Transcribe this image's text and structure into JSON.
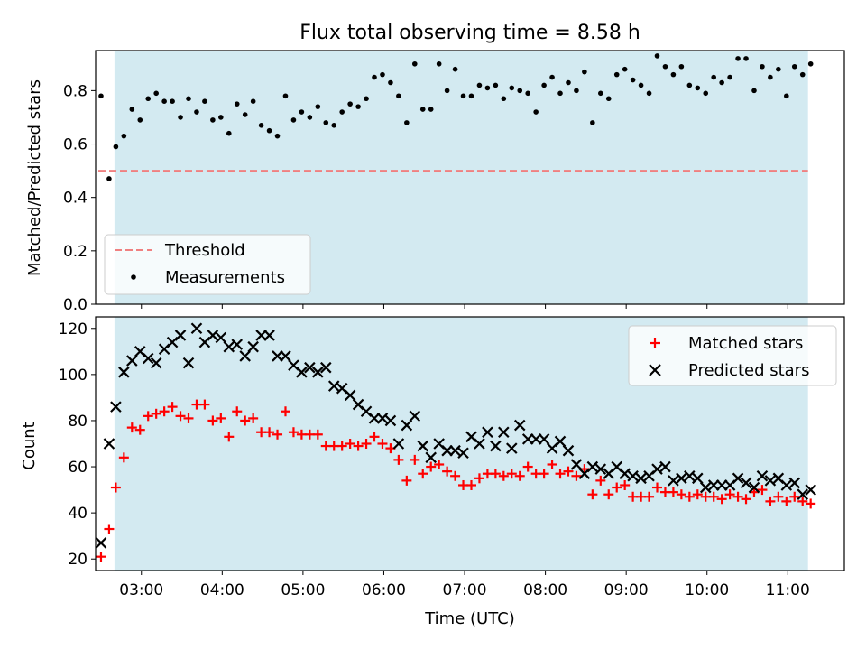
{
  "figure": {
    "title": "Flux total observing time = 8.58 h",
    "xlabel": "Time (UTC)",
    "shade_color": "#d3eaf1"
  },
  "chart_data": [
    {
      "type": "scatter",
      "panel": "top",
      "ylabel": "Matched/Predicted stars",
      "xlim": [
        "02:26",
        "11:42"
      ],
      "ylim": [
        0,
        0.95
      ],
      "yticks": [
        0.0,
        0.2,
        0.4,
        0.6,
        0.8
      ],
      "shaded_span": [
        "02:40",
        "11:15"
      ],
      "threshold": {
        "name": "Threshold",
        "value": 0.5,
        "x_range": [
          "02:28",
          "11:15"
        ],
        "color": "#f08080",
        "style": "dashed"
      },
      "legend_placement": "lower left",
      "series": [
        {
          "name": "Measurements",
          "color": "#000000",
          "marker": "dot",
          "x": [
            "02:30",
            "02:36",
            "02:41",
            "02:47",
            "02:53",
            "02:59",
            "03:05",
            "03:11",
            "03:17",
            "03:23",
            "03:29",
            "03:35",
            "03:41",
            "03:47",
            "03:53",
            "03:59",
            "04:05",
            "04:11",
            "04:17",
            "04:23",
            "04:29",
            "04:35",
            "04:41",
            "04:47",
            "04:53",
            "04:59",
            "05:05",
            "05:11",
            "05:17",
            "05:23",
            "05:29",
            "05:35",
            "05:41",
            "05:47",
            "05:53",
            "05:59",
            "06:05",
            "06:11",
            "06:17",
            "06:23",
            "06:29",
            "06:35",
            "06:41",
            "06:47",
            "06:53",
            "06:59",
            "07:05",
            "07:11",
            "07:17",
            "07:23",
            "07:29",
            "07:35",
            "07:41",
            "07:47",
            "07:53",
            "07:59",
            "08:05",
            "08:11",
            "08:17",
            "08:23",
            "08:29",
            "08:35",
            "08:41",
            "08:47",
            "08:53",
            "08:59",
            "09:05",
            "09:11",
            "09:17",
            "09:23",
            "09:29",
            "09:35",
            "09:41",
            "09:47",
            "09:53",
            "09:59",
            "10:05",
            "10:11",
            "10:17",
            "10:23",
            "10:29",
            "10:35",
            "10:41",
            "10:47",
            "10:53",
            "10:59",
            "11:05",
            "11:11",
            "11:17"
          ],
          "y": [
            0.78,
            0.47,
            0.59,
            0.63,
            0.73,
            0.69,
            0.77,
            0.79,
            0.76,
            0.76,
            0.7,
            0.77,
            0.72,
            0.76,
            0.69,
            0.7,
            0.64,
            0.75,
            0.71,
            0.76,
            0.67,
            0.65,
            0.63,
            0.78,
            0.69,
            0.72,
            0.7,
            0.74,
            0.68,
            0.67,
            0.72,
            0.75,
            0.74,
            0.77,
            0.85,
            0.86,
            0.83,
            0.78,
            0.68,
            0.9,
            0.73,
            0.73,
            0.9,
            0.8,
            0.88,
            0.78,
            0.78,
            0.82,
            0.81,
            0.82,
            0.77,
            0.81,
            0.8,
            0.79,
            0.72,
            0.82,
            0.85,
            0.79,
            0.83,
            0.8,
            0.87,
            0.68,
            0.79,
            0.77,
            0.86,
            0.88,
            0.84,
            0.82,
            0.79,
            0.93,
            0.89,
            0.86,
            0.89,
            0.82,
            0.81,
            0.79,
            0.85,
            0.83,
            0.85,
            0.92,
            0.92,
            0.8,
            0.89,
            0.85,
            0.88,
            0.78,
            0.89,
            0.86,
            0.9
          ]
        }
      ]
    },
    {
      "type": "scatter",
      "panel": "bottom",
      "ylabel": "Count",
      "xlim": [
        "02:26",
        "11:42"
      ],
      "ylim": [
        15,
        125
      ],
      "yticks": [
        20,
        40,
        60,
        80,
        100,
        120
      ],
      "xticks": [
        "03:00",
        "04:00",
        "05:00",
        "06:00",
        "07:00",
        "08:00",
        "09:00",
        "10:00",
        "11:00"
      ],
      "shaded_span": [
        "02:40",
        "11:15"
      ],
      "legend_placement": "upper right",
      "series": [
        {
          "name": "Matched stars",
          "color": "#ff0000",
          "marker": "plus",
          "x": [
            "02:30",
            "02:36",
            "02:41",
            "02:47",
            "02:53",
            "02:59",
            "03:05",
            "03:11",
            "03:17",
            "03:23",
            "03:29",
            "03:35",
            "03:41",
            "03:47",
            "03:53",
            "03:59",
            "04:05",
            "04:11",
            "04:17",
            "04:23",
            "04:29",
            "04:35",
            "04:41",
            "04:47",
            "04:53",
            "04:59",
            "05:05",
            "05:11",
            "05:17",
            "05:23",
            "05:29",
            "05:35",
            "05:41",
            "05:47",
            "05:53",
            "05:59",
            "06:05",
            "06:11",
            "06:17",
            "06:23",
            "06:29",
            "06:35",
            "06:41",
            "06:47",
            "06:53",
            "06:59",
            "07:05",
            "07:11",
            "07:17",
            "07:23",
            "07:29",
            "07:35",
            "07:41",
            "07:47",
            "07:53",
            "07:59",
            "08:05",
            "08:11",
            "08:17",
            "08:23",
            "08:29",
            "08:35",
            "08:41",
            "08:47",
            "08:53",
            "08:59",
            "09:05",
            "09:11",
            "09:17",
            "09:23",
            "09:29",
            "09:35",
            "09:41",
            "09:47",
            "09:53",
            "09:59",
            "10:05",
            "10:11",
            "10:17",
            "10:23",
            "10:29",
            "10:35",
            "10:41",
            "10:47",
            "10:53",
            "10:59",
            "11:05",
            "11:11",
            "11:17"
          ],
          "y": [
            21,
            33,
            51,
            64,
            77,
            76,
            82,
            83,
            84,
            86,
            82,
            81,
            87,
            87,
            80,
            81,
            73,
            84,
            80,
            81,
            75,
            75,
            74,
            84,
            75,
            74,
            74,
            74,
            69,
            69,
            69,
            70,
            69,
            70,
            73,
            70,
            68,
            63,
            54,
            63,
            57,
            60,
            61,
            58,
            56,
            52,
            52,
            55,
            57,
            57,
            56,
            57,
            56,
            60,
            57,
            57,
            61,
            57,
            58,
            56,
            59,
            48,
            54,
            48,
            51,
            52,
            47,
            47,
            47,
            51,
            49,
            49,
            48,
            47,
            48,
            47,
            47,
            46,
            48,
            47,
            46,
            49,
            50,
            45,
            47,
            45,
            47,
            45,
            44
          ]
        },
        {
          "name": "Predicted stars",
          "color": "#000000",
          "marker": "x",
          "x": [
            "02:30",
            "02:36",
            "02:41",
            "02:47",
            "02:53",
            "02:59",
            "03:05",
            "03:11",
            "03:17",
            "03:23",
            "03:29",
            "03:35",
            "03:41",
            "03:47",
            "03:53",
            "03:59",
            "04:05",
            "04:11",
            "04:17",
            "04:23",
            "04:29",
            "04:35",
            "04:41",
            "04:47",
            "04:53",
            "04:59",
            "05:05",
            "05:11",
            "05:17",
            "05:23",
            "05:29",
            "05:35",
            "05:41",
            "05:47",
            "05:53",
            "05:59",
            "06:05",
            "06:11",
            "06:17",
            "06:23",
            "06:29",
            "06:35",
            "06:41",
            "06:47",
            "06:53",
            "06:59",
            "07:05",
            "07:11",
            "07:17",
            "07:23",
            "07:29",
            "07:35",
            "07:41",
            "07:47",
            "07:53",
            "07:59",
            "08:05",
            "08:11",
            "08:17",
            "08:23",
            "08:29",
            "08:35",
            "08:41",
            "08:47",
            "08:53",
            "08:59",
            "09:05",
            "09:11",
            "09:17",
            "09:23",
            "09:29",
            "09:35",
            "09:41",
            "09:47",
            "09:53",
            "09:59",
            "10:05",
            "10:11",
            "10:17",
            "10:23",
            "10:29",
            "10:35",
            "10:41",
            "10:47",
            "10:53",
            "10:59",
            "11:05",
            "11:11",
            "11:17"
          ],
          "y": [
            27,
            70,
            86,
            101,
            106,
            110,
            107,
            105,
            111,
            114,
            117,
            105,
            120,
            114,
            117,
            116,
            112,
            113,
            108,
            112,
            117,
            117,
            108,
            108,
            104,
            101,
            103,
            101,
            103,
            95,
            94,
            91,
            87,
            84,
            81,
            81,
            80,
            70,
            78,
            82,
            69,
            64,
            70,
            67,
            67,
            66,
            73,
            70,
            75,
            69,
            75,
            68,
            78,
            72,
            72,
            72,
            68,
            71,
            67,
            61,
            57,
            60,
            59,
            57,
            60,
            57,
            56,
            55,
            56,
            59,
            60,
            54,
            55,
            56,
            55,
            51,
            52,
            52,
            52,
            55,
            53,
            51,
            56,
            54,
            55,
            52,
            53,
            48,
            50
          ]
        }
      ]
    }
  ]
}
